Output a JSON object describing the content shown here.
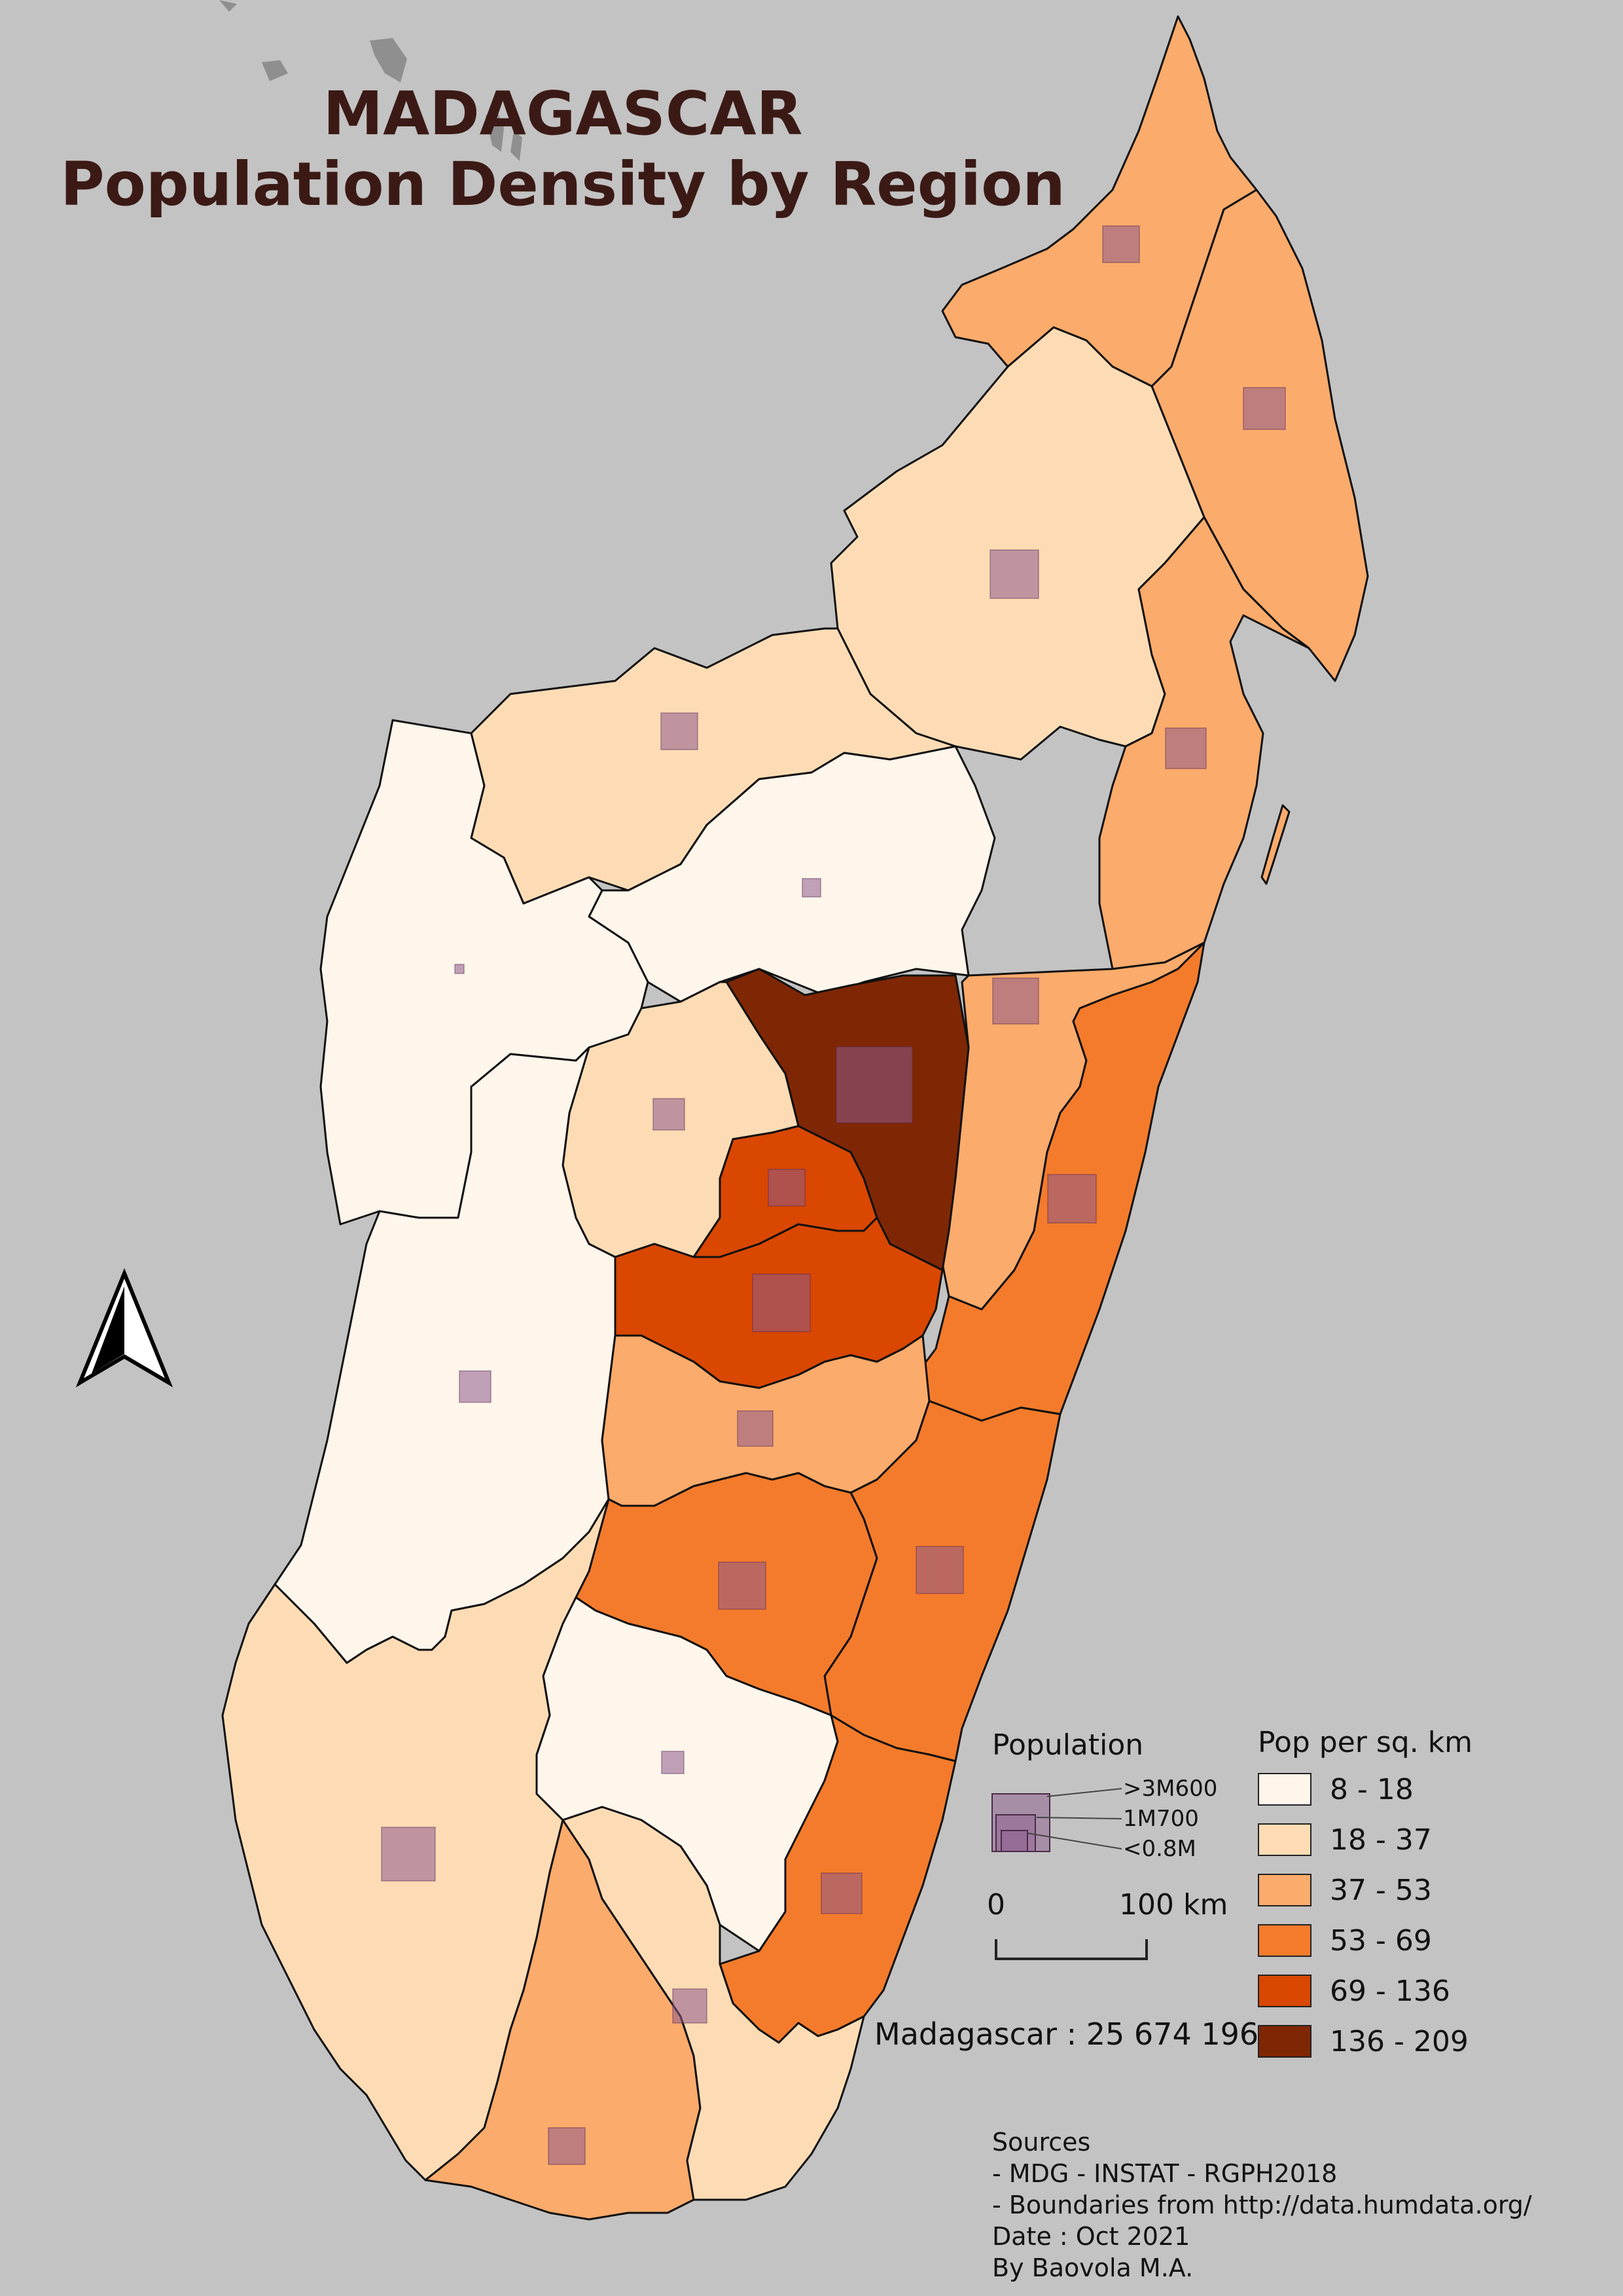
{
  "title": {
    "line1": "MADAGASCAR",
    "line2": "Population Density by Region"
  },
  "legend_population": {
    "title": "Population",
    "labels": [
      ">3M600",
      "1M700",
      "<0.8M"
    ]
  },
  "legend_density": {
    "title": "Pop per sq. km",
    "classes": [
      {
        "label": "8 - 18",
        "color": "#fef5eb"
      },
      {
        "label": "18 - 37",
        "color": "#fddcb5"
      },
      {
        "label": "37 - 53",
        "color": "#fbab6b"
      },
      {
        "label": "53 - 69",
        "color": "#f47b2b"
      },
      {
        "label": "69 - 136",
        "color": "#d94701"
      },
      {
        "label": "136 - 209",
        "color": "#7f2704"
      }
    ]
  },
  "scale_bar": {
    "start": "0",
    "end": "100 km"
  },
  "total_population": "Madagascar : 25 674 196",
  "sources": [
    "Sources",
    "- MDG - INSTAT - RGPH2018",
    "- Boundaries from http://data.humdata.org/",
    "Date : Oct 2021",
    "By Baovola M.A."
  ],
  "colors": {
    "background": "#c3c3c3",
    "title": "#3b1a16",
    "square": "#8c5a8c"
  },
  "icons": {
    "north_arrow": "north-arrow-icon"
  }
}
